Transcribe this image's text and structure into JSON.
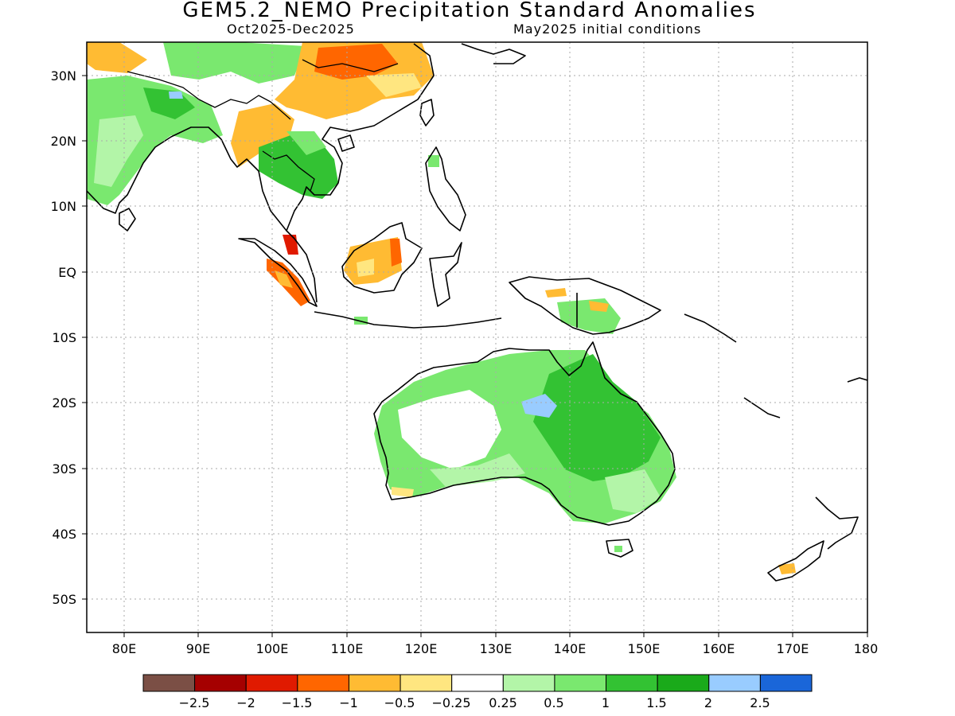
{
  "title": "GEM5.2_NEMO Precipitation Standard Anomalies",
  "subtitle_left": "Oct2025-Dec2025",
  "subtitle_right": "May2025 initial conditions",
  "map": {
    "lon_range": [
      75,
      180
    ],
    "lat_range": [
      -55,
      35
    ],
    "lon_ticks": [
      "80E",
      "90E",
      "100E",
      "110E",
      "120E",
      "130E",
      "140E",
      "150E",
      "160E",
      "170E",
      "180"
    ],
    "lat_ticks": [
      "30N",
      "20N",
      "10N",
      "EQ",
      "10S",
      "20S",
      "30S",
      "40S",
      "50S"
    ],
    "grid": "dotted"
  },
  "colorbar": {
    "colors": [
      "#7b4f45",
      "#a50000",
      "#e01a00",
      "#ff6600",
      "#ffbb33",
      "#ffe680",
      "#ffffff",
      "#b3f5a8",
      "#7ae86f",
      "#33c233",
      "#1aaa1a",
      "#99ccff",
      "#1a66d9"
    ],
    "labels": [
      "-2.5",
      "-2",
      "-1.5",
      "-1",
      "-0.5",
      "-0.25",
      "0.25",
      "0.5",
      "1",
      "1.5",
      "2",
      "2.5"
    ]
  },
  "colors": {
    "below": "#ffbb33",
    "well_below": "#ff6600",
    "strong_below": "#e01a00",
    "light_above": "#b3f5a8",
    "above": "#7ae86f",
    "well_above": "#33c233",
    "very_above": "#99ccff"
  }
}
